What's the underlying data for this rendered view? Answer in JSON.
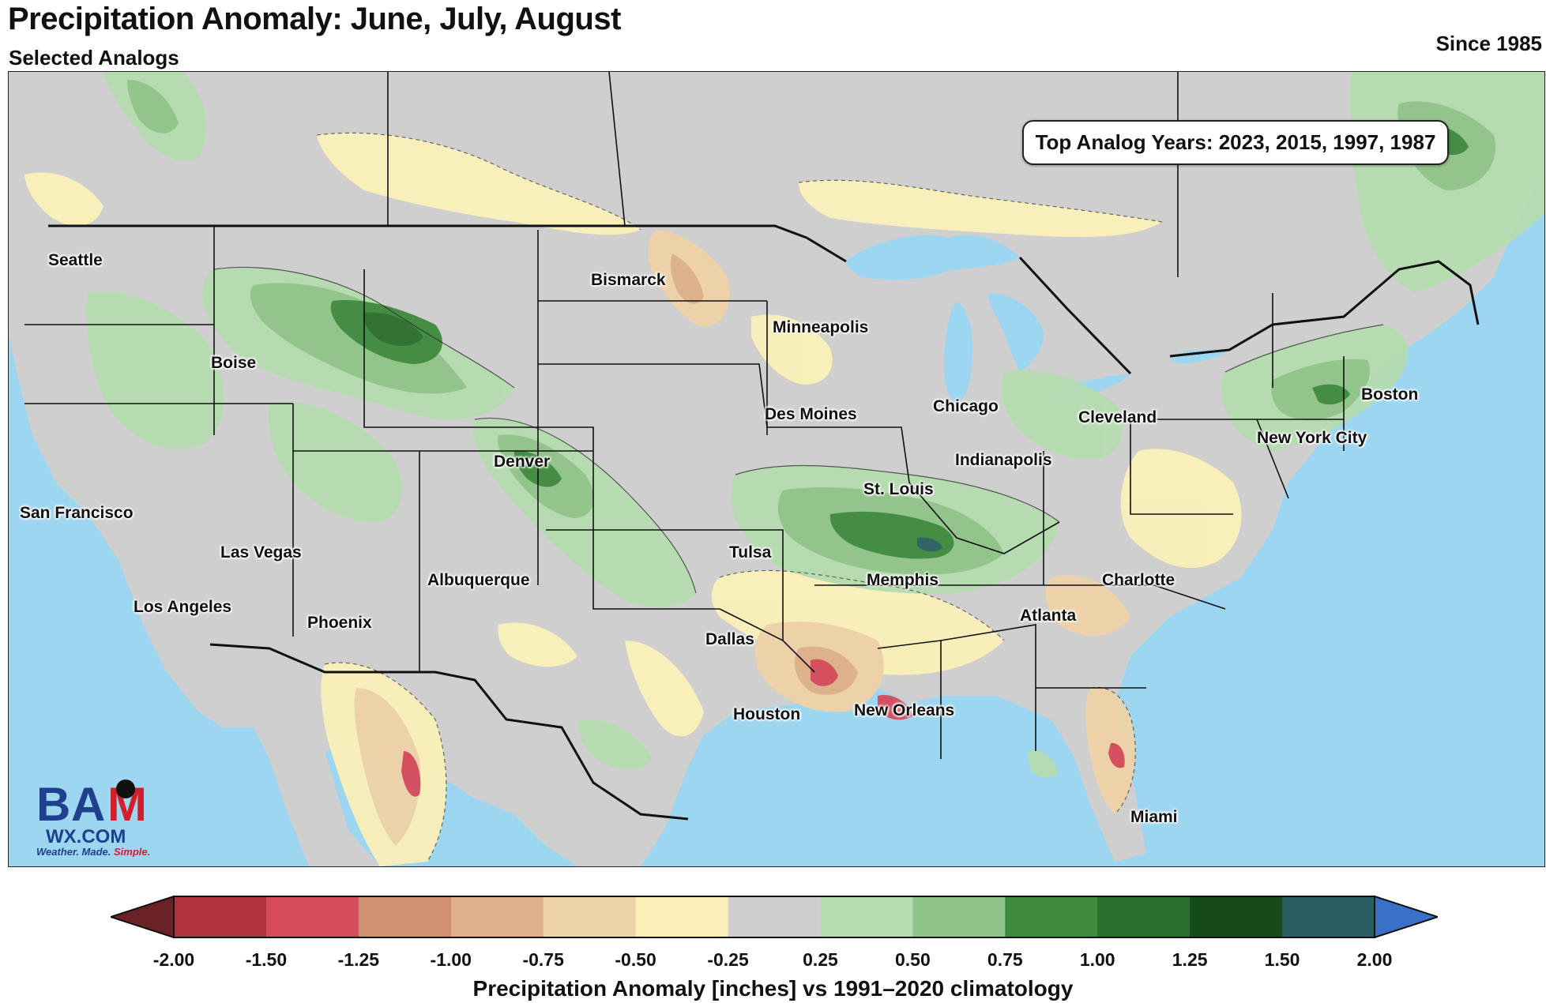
{
  "header": {
    "title": "Precipitation Anomaly: June, July, August",
    "subtitle": "Selected Analogs",
    "since": "Since 1985"
  },
  "analog_box": {
    "text": "Top Analog Years: 2023, 2015, 1997, 1987"
  },
  "cities": [
    {
      "name": "Seattle"
    },
    {
      "name": "Boise"
    },
    {
      "name": "San Francisco"
    },
    {
      "name": "Las Vegas"
    },
    {
      "name": "Los Angeles"
    },
    {
      "name": "Phoenix"
    },
    {
      "name": "Albuquerque"
    },
    {
      "name": "Denver"
    },
    {
      "name": "Bismarck"
    },
    {
      "name": "Minneapolis"
    },
    {
      "name": "Des Moines"
    },
    {
      "name": "Chicago"
    },
    {
      "name": "Cleveland"
    },
    {
      "name": "Indianapolis"
    },
    {
      "name": "St. Louis"
    },
    {
      "name": "Tulsa"
    },
    {
      "name": "Memphis"
    },
    {
      "name": "Dallas"
    },
    {
      "name": "Houston"
    },
    {
      "name": "New Orleans"
    },
    {
      "name": "Atlanta"
    },
    {
      "name": "Charlotte"
    },
    {
      "name": "Boston"
    },
    {
      "name": "New York City"
    },
    {
      "name": "Miami"
    }
  ],
  "logo": {
    "line1": "BAM",
    "line2": "WX.COM",
    "tagline_a": "Weather. Made. ",
    "tagline_b": "Simple."
  },
  "colorbar": {
    "label": "Precipitation Anomaly [inches] vs 1991–2020 climatology",
    "ticks": [
      "-2.00",
      "-1.50",
      "-1.25",
      "-1.00",
      "-0.75",
      "-0.50",
      "-0.25",
      "0.25",
      "0.50",
      "0.75",
      "1.00",
      "1.25",
      "1.50",
      "2.00"
    ],
    "colors": [
      "#b3303e",
      "#d64a5a",
      "#d09070",
      "#dfb08a",
      "#efd3a8",
      "#fbf0b8",
      "#cfcfcf",
      "#b5dcb0",
      "#90c488",
      "#3e8a3e",
      "#2a6e2c",
      "#164a1a",
      "#2a5e60"
    ],
    "under_color": "#6b2227",
    "over_color": "#3a70c8"
  }
}
